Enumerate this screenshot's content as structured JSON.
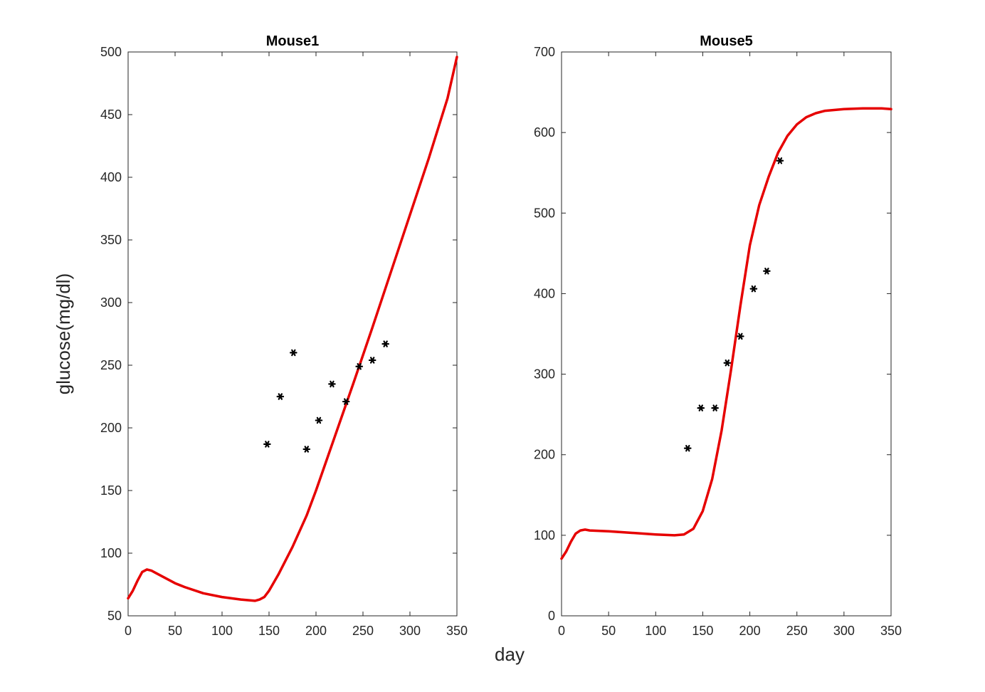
{
  "figure": {
    "xlabel": "day",
    "ylabel": "glucose(mg/dl)"
  },
  "colors": {
    "model_line": "#e60000",
    "data_points": "#000000",
    "axes": "#262626"
  },
  "chart_data": [
    {
      "type": "line",
      "title": "Mouse1",
      "xlim": [
        0,
        350
      ],
      "ylim": [
        50,
        500
      ],
      "xticks": [
        0,
        50,
        100,
        150,
        200,
        250,
        300,
        350
      ],
      "yticks": [
        50,
        100,
        150,
        200,
        250,
        300,
        350,
        400,
        450,
        500
      ],
      "grid": false,
      "series": [
        {
          "kind": "line",
          "x": [
            0,
            5,
            10,
            15,
            20,
            25,
            30,
            40,
            50,
            60,
            80,
            100,
            120,
            135,
            140,
            145,
            150,
            160,
            175,
            190,
            200,
            220,
            240,
            260,
            280,
            300,
            320,
            340,
            350
          ],
          "y": [
            64,
            70,
            78,
            85,
            87,
            86,
            84,
            80,
            76,
            73,
            68,
            65,
            63,
            62,
            63,
            65,
            70,
            83,
            105,
            130,
            150,
            193,
            236,
            280,
            325,
            370,
            415,
            463,
            496
          ]
        },
        {
          "kind": "scatter",
          "x": [
            148,
            162,
            176,
            190,
            203,
            217,
            232,
            246,
            260,
            274
          ],
          "y": [
            187,
            225,
            260,
            183,
            206,
            235,
            221,
            249,
            254,
            267
          ]
        }
      ]
    },
    {
      "type": "line",
      "title": "Mouse5",
      "xlim": [
        0,
        350
      ],
      "ylim": [
        0,
        700
      ],
      "xticks": [
        0,
        50,
        100,
        150,
        200,
        250,
        300,
        350
      ],
      "yticks": [
        0,
        100,
        200,
        300,
        400,
        500,
        600,
        700
      ],
      "grid": false,
      "series": [
        {
          "kind": "line",
          "x": [
            0,
            5,
            10,
            15,
            20,
            25,
            30,
            50,
            75,
            100,
            120,
            130,
            140,
            150,
            160,
            170,
            180,
            190,
            200,
            210,
            220,
            230,
            240,
            250,
            260,
            270,
            280,
            300,
            320,
            340,
            350
          ],
          "y": [
            71,
            80,
            92,
            102,
            106,
            107,
            106,
            105,
            103,
            101,
            100,
            101,
            108,
            130,
            170,
            230,
            305,
            385,
            460,
            510,
            545,
            575,
            596,
            610,
            619,
            624,
            627,
            629,
            630,
            630,
            629
          ]
        },
        {
          "kind": "scatter",
          "x": [
            134,
            148,
            163,
            176,
            190,
            204,
            218,
            232
          ],
          "y": [
            208,
            258,
            258,
            314,
            347,
            406,
            428,
            565
          ]
        }
      ]
    }
  ]
}
